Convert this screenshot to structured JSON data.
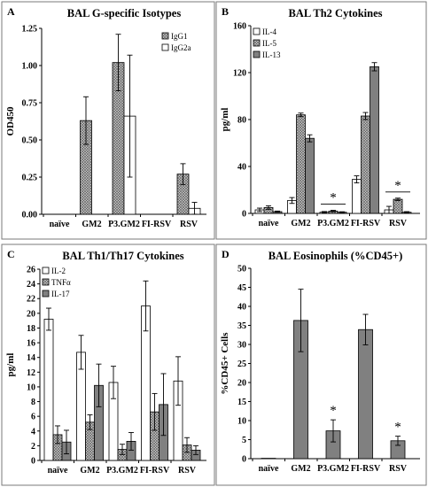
{
  "chart_data": [
    {
      "type": "bar",
      "panel_label": "A",
      "title": "BAL G-specific Isotypes",
      "ylabel": "OD450",
      "xlabel": "",
      "ylim": [
        0,
        1.25
      ],
      "yticks": [
        "0.00",
        "0.25",
        "0.50",
        "0.75",
        "1.00",
        "1.25"
      ],
      "categories": [
        "naïve",
        "GM2",
        "P3.GM2",
        "FI-RSV",
        "RSV"
      ],
      "legend_position": "top-right",
      "grid": false,
      "series": [
        {
          "name": "IgG1",
          "pattern": "crosshatch",
          "fill": "#a9a9a9",
          "values": [
            0,
            0.63,
            1.02,
            0,
            0.27
          ],
          "errors": [
            0,
            0.16,
            0.19,
            0,
            0.07
          ]
        },
        {
          "name": "IgG2a",
          "pattern": "none",
          "fill": "#ffffff",
          "values": [
            0,
            0,
            0.66,
            0,
            0.04
          ],
          "errors": [
            0,
            0,
            0.41,
            0,
            0.04
          ]
        }
      ],
      "significance": []
    },
    {
      "type": "bar",
      "panel_label": "B",
      "title": "BAL Th2 Cytokines",
      "ylabel": "pg/ml",
      "xlabel": "",
      "ylim": [
        0,
        160
      ],
      "yticks": [
        "0",
        "40",
        "80",
        "120",
        "160"
      ],
      "categories": [
        "naïve",
        "GM2",
        "P3.GM2",
        "FI-RSV",
        "RSV"
      ],
      "legend_position": "top-left",
      "grid": false,
      "series": [
        {
          "name": "IL-4",
          "pattern": "none",
          "fill": "#ffffff",
          "values": [
            3,
            11,
            1,
            29,
            3
          ],
          "errors": [
            1.5,
            2.5,
            0.6,
            3,
            3
          ]
        },
        {
          "name": "IL-5",
          "pattern": "crosshatch",
          "fill": "#a9a9a9",
          "values": [
            5,
            84,
            2,
            83,
            12
          ],
          "errors": [
            1.5,
            1.5,
            0.6,
            3,
            1
          ]
        },
        {
          "name": "IL-13",
          "pattern": "none",
          "fill": "#808080",
          "values": [
            1.5,
            64,
            1,
            125,
            1
          ],
          "errors": [
            0.5,
            3,
            0.4,
            3.5,
            0.5
          ]
        }
      ],
      "significance": [
        {
          "category": "P3.GM2",
          "text": "*"
        },
        {
          "category": "RSV",
          "text": "*"
        }
      ]
    },
    {
      "type": "bar",
      "panel_label": "C",
      "title": "BAL Th1/Th17 Cytokines",
      "ylabel": "pg/ml",
      "xlabel": "",
      "ylim": [
        0,
        26
      ],
      "yticks": [
        "0",
        "2",
        "4",
        "6",
        "8",
        "10",
        "12",
        "14",
        "16",
        "18",
        "20",
        "22",
        "24",
        "26"
      ],
      "categories": [
        "naïve",
        "GM2",
        "P3.GM2",
        "FI-RSV",
        "RSV"
      ],
      "legend_position": "top-left",
      "grid": false,
      "series": [
        {
          "name": "IL-2",
          "pattern": "none",
          "fill": "#ffffff",
          "values": [
            19.2,
            14.7,
            10.6,
            21.0,
            10.8
          ],
          "errors": [
            1.5,
            2.3,
            2.2,
            3.4,
            3.3
          ]
        },
        {
          "name": "TNFα",
          "pattern": "crosshatch",
          "fill": "#a9a9a9",
          "values": [
            3.5,
            5.2,
            1.5,
            6.6,
            2.1
          ],
          "errors": [
            1.2,
            1.0,
            0.7,
            2.5,
            1.0
          ]
        },
        {
          "name": "IL-17",
          "pattern": "none",
          "fill": "#808080",
          "values": [
            2.5,
            10.2,
            2.6,
            7.6,
            1.4
          ],
          "errors": [
            1.6,
            2.9,
            1.2,
            4.2,
            0.6
          ]
        }
      ],
      "significance": []
    },
    {
      "type": "bar",
      "panel_label": "D",
      "title": "BAL Eosinophils (%CD45+)",
      "ylabel": "%CD45+ Cells",
      "xlabel": "",
      "ylim": [
        0,
        50
      ],
      "yticks": [
        "0",
        "5",
        "10",
        "15",
        "20",
        "25",
        "30",
        "35",
        "40",
        "45",
        "50"
      ],
      "categories": [
        "naïve",
        "GM2",
        "P3.GM2",
        "FI-RSV",
        "RSV"
      ],
      "legend_position": "none",
      "grid": false,
      "series": [
        {
          "name": "",
          "pattern": "none",
          "fill": "#808080",
          "values": [
            0.1,
            36.3,
            7.3,
            33.9,
            4.7
          ],
          "errors": [
            0,
            8.2,
            2.9,
            4.0,
            1.2
          ]
        }
      ],
      "significance": [
        {
          "category": "P3.GM2",
          "text": "*"
        },
        {
          "category": "RSV",
          "text": "*"
        }
      ]
    }
  ]
}
